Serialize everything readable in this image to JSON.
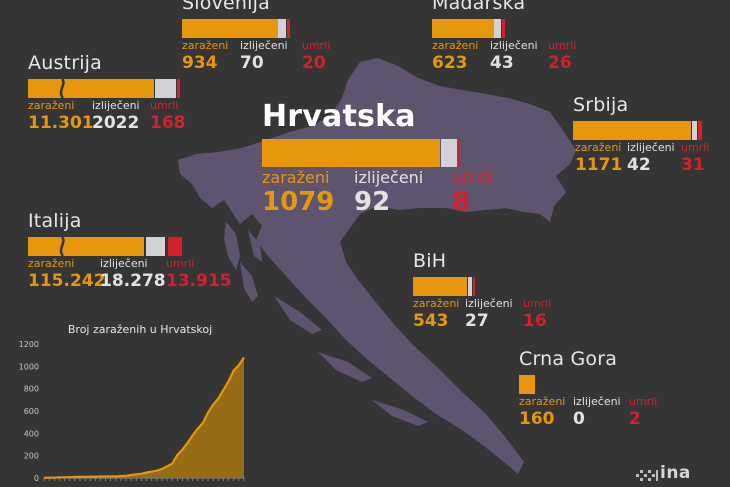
{
  "countries": {
    "slovenia": {
      "name": "Slovenija",
      "infected_label": "zaraženi",
      "recovered_label": "izliječeni",
      "dead_label": "umrli",
      "infected": "934",
      "recovered": "70",
      "dead": "20"
    },
    "hungary": {
      "name": "Mađarska",
      "infected_label": "zaraženi",
      "recovered_label": "izliječeni",
      "dead_label": "umrli",
      "infected": "623",
      "recovered": "43",
      "dead": "26"
    },
    "austria": {
      "name": "Austrija",
      "infected_label": "zaraženi",
      "recovered_label": "izliječeni",
      "dead_label": "umrli",
      "infected": "11.301",
      "recovered": "2022",
      "dead": "168"
    },
    "croatia": {
      "name": "Hrvatska",
      "infected_label": "zaraženi",
      "recovered_label": "izliječeni",
      "dead_label": "umrli",
      "infected": "1079",
      "recovered": "92",
      "dead": "8"
    },
    "serbia": {
      "name": "Srbija",
      "infected_label": "zaraženi",
      "recovered_label": "izliječeni",
      "dead_label": "umrli",
      "infected": "1171",
      "recovered": "42",
      "dead": "31"
    },
    "italy": {
      "name": "Italija",
      "infected_label": "zaraženi",
      "recovered_label": "izliječeni",
      "dead_label": "umrli",
      "infected": "115.242",
      "recovered": "18.278",
      "dead": "13.915"
    },
    "bih": {
      "name": "BiH",
      "infected_label": "zaraženi",
      "recovered_label": "izliječeni",
      "dead_label": "umrli",
      "infected": "543",
      "recovered": "27",
      "dead": "16"
    },
    "montenegro": {
      "name": "Crna Gora",
      "infected_label": "zaraženi",
      "recovered_label": "izliječeni",
      "dead_label": "umrli",
      "infected": "160",
      "recovered": "0",
      "dead": "2"
    }
  },
  "colors": {
    "infected": "#e8960c",
    "recovered": "#d2d2d6",
    "dead": "#d4202a",
    "map": "#5e5470",
    "background": "#353535"
  },
  "logo": {
    "text": "ina"
  },
  "chart_data": [
    {
      "type": "bar",
      "title": "",
      "categories": [
        "Slovenija",
        "Mađarska",
        "Austrija",
        "Hrvatska",
        "Srbija",
        "Italija",
        "BiH",
        "Crna Gora"
      ],
      "series": [
        {
          "name": "zaraženi",
          "values": [
            934,
            623,
            11301,
            1079,
            1171,
            115242,
            543,
            160
          ]
        },
        {
          "name": "izliječeni",
          "values": [
            70,
            43,
            2022,
            92,
            42,
            18278,
            27,
            0
          ]
        },
        {
          "name": "umrli",
          "values": [
            20,
            26,
            168,
            8,
            31,
            13915,
            16,
            2
          ]
        }
      ]
    },
    {
      "type": "area",
      "title": "Broj zaraženih u Hrvatskoj",
      "xlabel": "",
      "ylabel": "",
      "ylim": [
        0,
        1200
      ],
      "yticks": [
        0,
        200,
        400,
        600,
        800,
        1000,
        1200
      ],
      "grid": false,
      "x": [
        1,
        2,
        3,
        4,
        5,
        6,
        7,
        8,
        9,
        10,
        11,
        12,
        13,
        14,
        15,
        16,
        17,
        18,
        19,
        20,
        21,
        22,
        23,
        24,
        25,
        26,
        27,
        28,
        29,
        30,
        31,
        32,
        33,
        34,
        35,
        36,
        37,
        38,
        39,
        40
      ],
      "values": [
        1,
        3,
        3,
        5,
        6,
        7,
        9,
        10,
        11,
        12,
        12,
        13,
        13,
        14,
        14,
        17,
        19,
        27,
        32,
        38,
        49,
        57,
        65,
        81,
        105,
        128,
        206,
        254,
        315,
        382,
        442,
        495,
        586,
        657,
        713,
        790,
        867,
        963,
        1011,
        1079
      ]
    }
  ]
}
